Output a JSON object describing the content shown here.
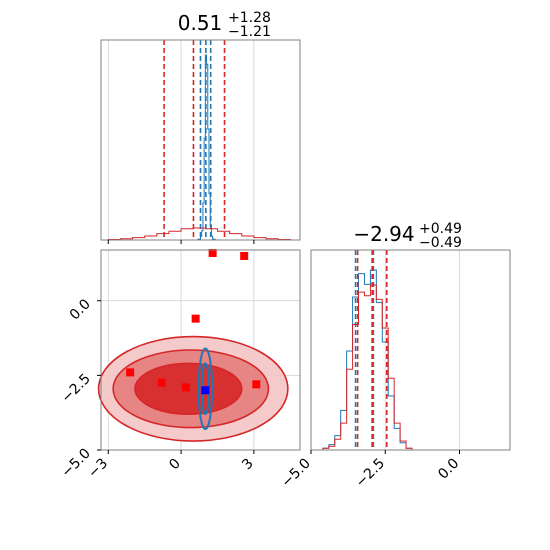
{
  "chart_data": [
    {
      "type": "histogram",
      "panel": "top-left",
      "title": {
        "main": "0.51",
        "sup": "+1.28",
        "sub": "−1.21"
      },
      "xlim": [
        -3.3,
        4.9
      ],
      "grid": true,
      "series": [
        {
          "color": "#1f77b4",
          "quantiles": [
            0.8,
            1.02,
            1.22
          ],
          "bin_edges": [
            0.6,
            0.7,
            0.8,
            0.85,
            0.9,
            0.95,
            1.0,
            1.05,
            1.1,
            1.15,
            1.2,
            1.25,
            1.3,
            1.4,
            1.5
          ],
          "counts": [
            0,
            0.5,
            2,
            5,
            20,
            55,
            100,
            95,
            60,
            25,
            8,
            2,
            0.5,
            0
          ]
        },
        {
          "color": "#d62728",
          "quantiles": [
            -0.7,
            0.51,
            1.79
          ],
          "bin_edges": [
            -3.0,
            -2.5,
            -2.0,
            -1.5,
            -1.0,
            -0.5,
            0.0,
            0.5,
            1.0,
            1.5,
            2.0,
            2.5,
            3.0,
            3.5,
            4.0,
            4.5
          ],
          "counts": [
            0.3,
            0.8,
            1.5,
            2.5,
            4.0,
            5.5,
            7.0,
            7.5,
            7.0,
            5.5,
            4.0,
            2.5,
            1.5,
            0.8,
            0.3
          ]
        }
      ]
    },
    {
      "type": "contour-scatter",
      "panel": "bottom-left",
      "xlim": [
        -3.3,
        4.9
      ],
      "ylim": [
        -5.0,
        1.7
      ],
      "xticks": [
        "−3",
        "0",
        "3"
      ],
      "yticks": [
        "−5.0",
        "−2.5",
        "0.0"
      ],
      "xtick_values": [
        -3,
        0,
        3
      ],
      "ytick_values": [
        -5.0,
        -2.5,
        0.0
      ],
      "grid": true,
      "red_markers": [
        [
          1.3,
          1.6
        ],
        [
          2.6,
          1.5
        ],
        [
          0.6,
          -0.6
        ],
        [
          -2.1,
          -2.4
        ],
        [
          -0.8,
          -2.75
        ],
        [
          0.2,
          -2.9
        ],
        [
          3.1,
          -2.8
        ]
      ],
      "blue_marker": [
        1.0,
        -3.0
      ],
      "red_contours": [
        {
          "cx": 0.5,
          "cy": -2.95,
          "rx": 3.9,
          "ry": 1.75,
          "fill": "#f4c4c4"
        },
        {
          "cx": 0.4,
          "cy": -2.95,
          "rx": 3.2,
          "ry": 1.3,
          "fill": "#e67c7c"
        },
        {
          "cx": 0.3,
          "cy": -2.95,
          "rx": 2.2,
          "ry": 0.85,
          "fill": "#d62728"
        }
      ],
      "blue_contours": [
        {
          "cx": 1.0,
          "cy": -2.95,
          "rx": 0.28,
          "ry": 1.35
        },
        {
          "cx": 1.0,
          "cy": -2.95,
          "rx": 0.15,
          "ry": 0.85
        }
      ]
    },
    {
      "type": "histogram",
      "panel": "bottom-right",
      "title": {
        "main": "−2.94",
        "sup": "+0.49",
        "sub": "−0.49"
      },
      "xlim": [
        -5.0,
        1.7
      ],
      "xticks": [
        "−5.0",
        "−2.5",
        "0.0"
      ],
      "xtick_values": [
        -5.0,
        -2.5,
        0.0
      ],
      "grid": true,
      "series": [
        {
          "color": "#1f77b4",
          "quantiles": [
            -3.5,
            -2.9,
            -2.45
          ],
          "bin_edges": [
            -4.6,
            -4.4,
            -4.2,
            -4.0,
            -3.8,
            -3.6,
            -3.4,
            -3.2,
            -3.0,
            -2.8,
            -2.6,
            -2.4,
            -2.2,
            -2.0,
            -1.8,
            -1.6
          ],
          "counts": [
            1,
            3,
            8,
            22,
            55,
            85,
            98,
            92,
            100,
            82,
            60,
            30,
            12,
            4,
            1
          ]
        },
        {
          "color": "#d62728",
          "quantiles": [
            -3.43,
            -2.94,
            -2.45
          ],
          "bin_edges": [
            -4.6,
            -4.4,
            -4.2,
            -4.0,
            -3.8,
            -3.6,
            -3.4,
            -3.2,
            -3.0,
            -2.8,
            -2.6,
            -2.4,
            -2.2,
            -2.0,
            -1.8,
            -1.6
          ],
          "counts": [
            1,
            2,
            6,
            15,
            45,
            70,
            88,
            86,
            92,
            84,
            68,
            40,
            15,
            5,
            1
          ]
        }
      ]
    }
  ]
}
